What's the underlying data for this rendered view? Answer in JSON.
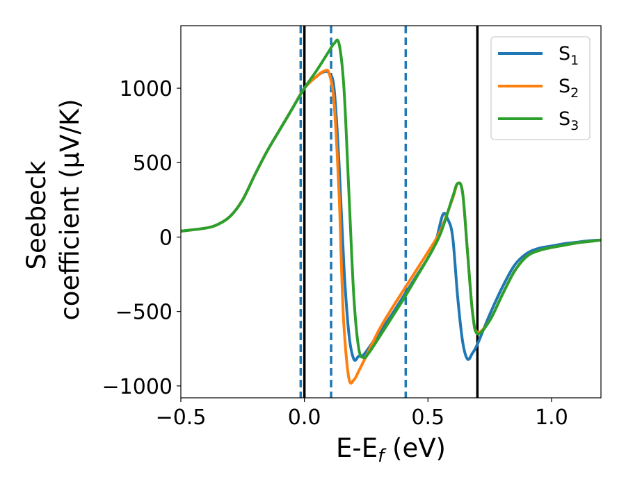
{
  "chart_data": {
    "type": "line",
    "title": "",
    "xlabel": "E-E",
    "xlabel_sub": "f",
    "xlabel_unit": "(eV)",
    "ylabel_line1": "Seebeck",
    "ylabel_line2": "coefficient  (μV/K)",
    "xlim": [
      -0.5,
      1.2
    ],
    "ylim": [
      -1080,
      1420
    ],
    "xticks": [
      -0.5,
      0.0,
      0.5,
      1.0
    ],
    "xtick_labels": [
      "−0.5",
      "0.0",
      "0.5",
      "1.0"
    ],
    "yticks": [
      -1000,
      -500,
      0,
      500,
      1000
    ],
    "ytick_labels": [
      "−1000",
      "−500",
      "0",
      "500",
      "1000"
    ],
    "grid": false,
    "legend_position": "top-right",
    "vlines_solid": [
      0.0,
      0.7
    ],
    "vlines_dashed": [
      -0.015,
      0.108,
      0.41
    ],
    "series": [
      {
        "name": "S",
        "sub": "1",
        "color": "#1f77b4",
        "x": [
          -0.5,
          -0.4,
          -0.35,
          -0.3,
          -0.25,
          -0.2,
          -0.15,
          -0.1,
          -0.05,
          0.0,
          0.05,
          0.08,
          0.1,
          0.12,
          0.14,
          0.16,
          0.18,
          0.2,
          0.22,
          0.24,
          0.3,
          0.35,
          0.4,
          0.45,
          0.5,
          0.53,
          0.56,
          0.58,
          0.6,
          0.62,
          0.64,
          0.66,
          0.68,
          0.7,
          0.75,
          0.8,
          0.85,
          0.9,
          0.95,
          1.0,
          1.05,
          1.1,
          1.15,
          1.2
        ],
        "values": [
          40,
          60,
          85,
          140,
          250,
          420,
          580,
          720,
          860,
          1000,
          1080,
          1110,
          1100,
          1000,
          500,
          -200,
          -650,
          -820,
          -800,
          -790,
          -650,
          -530,
          -400,
          -270,
          -140,
          -40,
          150,
          120,
          0,
          -400,
          -700,
          -820,
          -780,
          -720,
          -520,
          -340,
          -190,
          -110,
          -75,
          -60,
          -45,
          -35,
          -25,
          -20
        ]
      },
      {
        "name": "S",
        "sub": "2",
        "color": "#ff7f0e",
        "x": [
          -0.5,
          -0.4,
          -0.35,
          -0.3,
          -0.25,
          -0.2,
          -0.15,
          -0.1,
          -0.05,
          0.0,
          0.05,
          0.08,
          0.1,
          0.12,
          0.14,
          0.15,
          0.16,
          0.18,
          0.2,
          0.22,
          0.25,
          0.3,
          0.35,
          0.4,
          0.45,
          0.5,
          0.55,
          0.6,
          0.62,
          0.64,
          0.66,
          0.68,
          0.7,
          0.75,
          0.8,
          0.85,
          0.9,
          0.95,
          1.0,
          1.05,
          1.1,
          1.15,
          1.2
        ],
        "values": [
          40,
          60,
          85,
          140,
          250,
          420,
          580,
          720,
          860,
          1000,
          1080,
          1115,
          1100,
          900,
          300,
          -200,
          -600,
          -950,
          -960,
          -900,
          -800,
          -630,
          -490,
          -360,
          -230,
          -100,
          40,
          260,
          360,
          300,
          -100,
          -500,
          -640,
          -560,
          -390,
          -230,
          -130,
          -90,
          -70,
          -55,
          -40,
          -30,
          -20
        ]
      },
      {
        "name": "S",
        "sub": "3",
        "color": "#2ca02c",
        "x": [
          -0.5,
          -0.4,
          -0.35,
          -0.3,
          -0.25,
          -0.2,
          -0.15,
          -0.1,
          -0.05,
          0.0,
          0.05,
          0.1,
          0.12,
          0.14,
          0.16,
          0.18,
          0.2,
          0.22,
          0.24,
          0.26,
          0.3,
          0.35,
          0.4,
          0.45,
          0.5,
          0.55,
          0.6,
          0.62,
          0.64,
          0.66,
          0.68,
          0.7,
          0.75,
          0.8,
          0.85,
          0.9,
          0.95,
          1.0,
          1.05,
          1.1,
          1.15,
          1.2
        ],
        "values": [
          40,
          60,
          85,
          140,
          250,
          420,
          580,
          720,
          860,
          1000,
          1120,
          1250,
          1300,
          1300,
          1000,
          300,
          -400,
          -750,
          -810,
          -780,
          -680,
          -550,
          -420,
          -280,
          -140,
          20,
          270,
          360,
          300,
          -100,
          -500,
          -650,
          -560,
          -390,
          -230,
          -130,
          -90,
          -70,
          -55,
          -40,
          -30,
          -20
        ]
      }
    ]
  }
}
